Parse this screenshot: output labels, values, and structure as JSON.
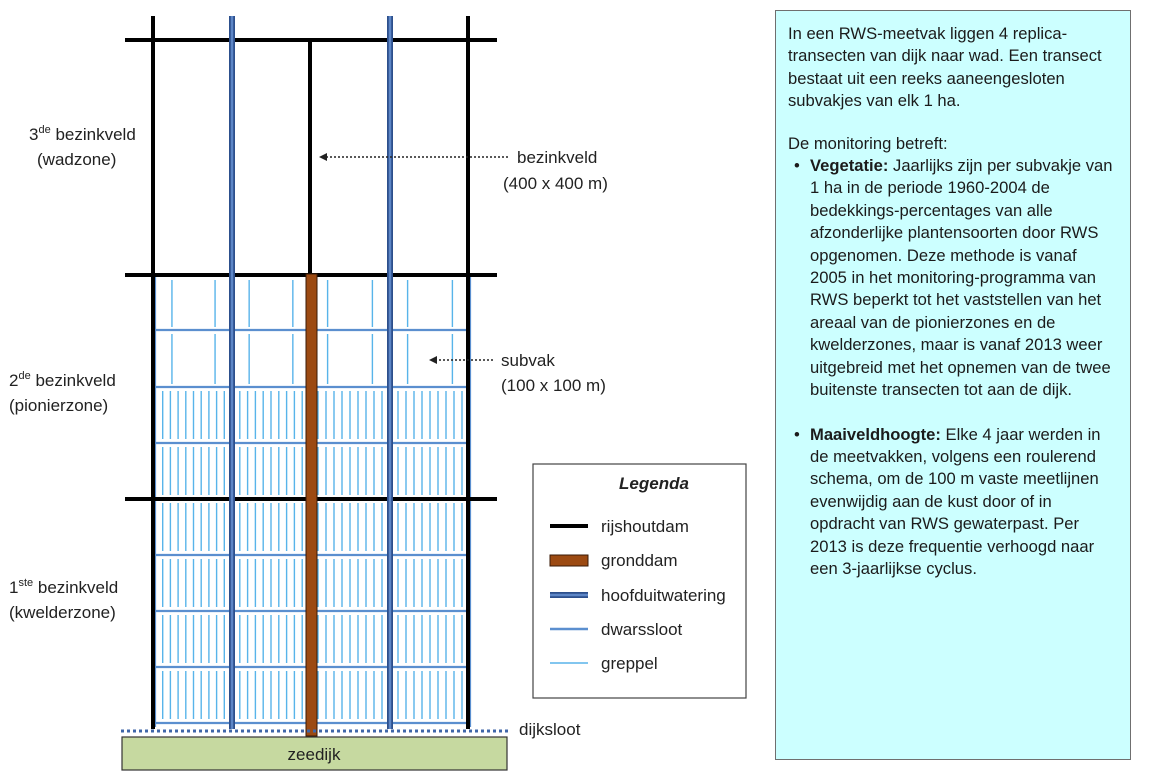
{
  "diagram": {
    "zones": [
      {
        "ordinal": "3",
        "suffix": "de",
        "word": "bezinkveld",
        "zone": "(wadzone)"
      },
      {
        "ordinal": "2",
        "suffix": "de",
        "word": "bezinkveld",
        "zone": "(pionierzone)"
      },
      {
        "ordinal": "1",
        "suffix": "ste",
        "word": "bezinkveld",
        "zone": "(kwelderzone)"
      }
    ],
    "callouts": [
      {
        "label": "bezinkveld",
        "dimension": "(400 x 400 m)"
      },
      {
        "label": "subvak",
        "dimension": "(100 x 100 m)"
      }
    ],
    "dijksloot_label": "dijksloot",
    "zeedijk_label": "zeedijk"
  },
  "legend": {
    "title": "Legenda",
    "items": [
      {
        "label": "rijshoutdam",
        "color": "#000000"
      },
      {
        "label": "gronddam",
        "color": "#9c4a12"
      },
      {
        "label": "hoofduitwatering",
        "color": "#3f66a8"
      },
      {
        "label": "dwarssloot",
        "color": "#5b8fcf"
      },
      {
        "label": "greppel",
        "color": "#58b4ea"
      }
    ]
  },
  "info": {
    "intro": "In een RWS-meetvak liggen 4 replica-transecten van dijk naar wad. Een transect bestaat uit een reeks aaneengesloten subvakjes van elk 1 ha.",
    "monitoring_heading": "De monitoring betreft:",
    "bullets": [
      {
        "title": "Vegetatie:",
        "text": "Jaarlijks zijn per subvakje van 1 ha in de periode 1960-2004 de bedekkings-percentages van alle afzonderlijke plantensoorten door RWS opgenomen. Deze methode is vanaf 2005 in het monitoring-programma van RWS beperkt tot het vaststellen van het areaal van de pionierzones en de kwelderzones, maar is vanaf 2013 weer uitgebreid met het opnemen van de twee buitenste transecten tot aan de dijk."
      },
      {
        "title": "Maaiveldhoogte:",
        "text": "Elke 4 jaar werden in de meetvakken, volgens een roulerend schema, om de 100 m vaste meetlijnen evenwijdig aan de kust door of in opdracht van RWS gewaterpast. Per 2013 is deze frequentie verhoogd naar een 3-jaarlijkse cyclus."
      }
    ]
  },
  "colors": {
    "rijshoutdam": "#000000",
    "gronddam": "#9c4a12",
    "hoofduitwatering": "#3f66a8",
    "dwarssloot": "#5b8fcf",
    "greppel": "#58b4ea",
    "zeedijk_fill": "#c6d9a0",
    "info_background": "#ccffff"
  }
}
